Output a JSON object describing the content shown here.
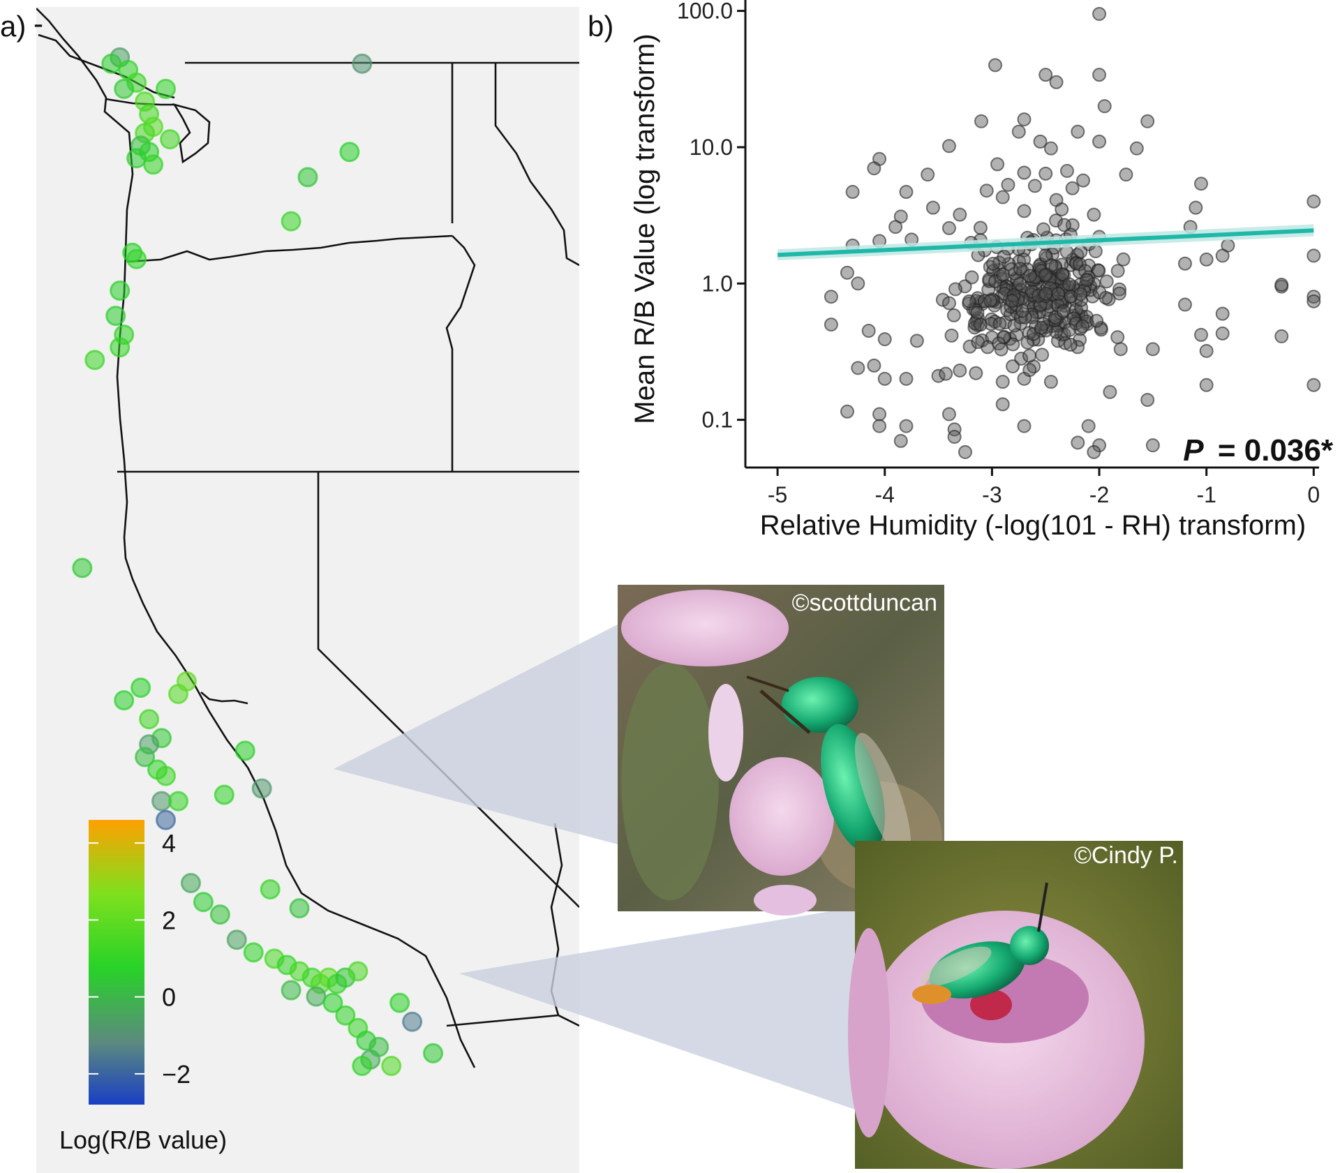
{
  "colors": {
    "map_land": "#f1f1f1",
    "map_border": "#111111",
    "fit_line": "#1fb8a8",
    "fit_band": "#bfe8e4",
    "scatter_point": "#555555",
    "callout": "#c9cfdf",
    "scale_low": "#1a3fc4",
    "scale_mid_low": "#5c8a7e",
    "scale_mid": "#28d228",
    "scale_mid_high": "#7ee01e",
    "scale_high": "#ffa000"
  },
  "panel_a": {
    "label": "a)",
    "legend": {
      "title": "Log(R/B value)",
      "ticks": [
        "4",
        "2",
        "0",
        "−2"
      ],
      "range": [
        -2.8,
        4.6
      ]
    }
  },
  "panel_b": {
    "label": "b)",
    "p_value": "= 0.036*",
    "p_symbol": "P"
  },
  "photos": {
    "top_credit": "©scottduncan",
    "bottom_credit": "©Cindy P."
  },
  "chart_data": [
    {
      "type": "scatter",
      "title": "",
      "xlabel": "Relative Humidity (-log(101 - RH) transform)",
      "ylabel": "Mean R/B Value (log transform)",
      "xlim": [
        -5.3,
        0.05
      ],
      "ylim_log10": [
        -1.35,
        2.08
      ],
      "x_ticks": [
        -5,
        -4,
        -3,
        -2,
        -1,
        0
      ],
      "x_tick_labels": [
        "-5",
        "-4",
        "-3",
        "-2",
        "-1",
        "0"
      ],
      "y_ticks": [
        0.1,
        1.0,
        10.0,
        100.0
      ],
      "y_tick_labels": [
        "0.1",
        "1.0",
        "10.0",
        "100.0"
      ],
      "fit": {
        "x": [
          -5.0,
          0.0
        ],
        "y": [
          1.62,
          2.45
        ],
        "band_low": [
          1.48,
          2.22
        ],
        "band_high": [
          1.78,
          2.72
        ]
      },
      "points": [
        [
          -2.0,
          95
        ],
        [
          -2.97,
          40
        ],
        [
          -2.5,
          34
        ],
        [
          -2.4,
          30
        ],
        [
          -2.0,
          34
        ],
        [
          -1.95,
          20
        ],
        [
          -2.7,
          16
        ],
        [
          -3.1,
          15.5
        ],
        [
          -1.55,
          15.5
        ],
        [
          -2.75,
          13
        ],
        [
          -2.2,
          13
        ],
        [
          -2.55,
          11
        ],
        [
          -2.0,
          11
        ],
        [
          -3.4,
          10.2
        ],
        [
          -1.65,
          9.8
        ],
        [
          -2.45,
          9.8
        ],
        [
          -4.05,
          8.2
        ],
        [
          -4.1,
          7.0
        ],
        [
          -2.95,
          7.5
        ],
        [
          -2.3,
          6.7
        ],
        [
          -3.6,
          6.3
        ],
        [
          -1.75,
          6.3
        ],
        [
          -2.5,
          6.4
        ],
        [
          -2.7,
          6.5
        ],
        [
          -1.05,
          5.4
        ],
        [
          -2.85,
          5.3
        ],
        [
          -3.8,
          4.7
        ],
        [
          -3.05,
          4.8
        ],
        [
          -2.9,
          4.3
        ],
        [
          -2.4,
          4.1
        ],
        [
          -2.25,
          5.0
        ],
        [
          -2.15,
          5.7
        ],
        [
          -2.6,
          5.2
        ],
        [
          -4.3,
          4.7
        ],
        [
          0.0,
          4.0
        ],
        [
          -3.55,
          3.6
        ],
        [
          -1.1,
          3.6
        ],
        [
          -3.3,
          3.2
        ],
        [
          -2.05,
          3.2
        ],
        [
          -3.85,
          3.1
        ],
        [
          -2.7,
          3.4
        ],
        [
          -2.35,
          3.5
        ],
        [
          -3.9,
          2.6
        ],
        [
          -3.4,
          2.55
        ],
        [
          -1.15,
          2.6
        ],
        [
          -4.05,
          2.05
        ],
        [
          -3.75,
          2.1
        ],
        [
          -2.0,
          2.2
        ],
        [
          -0.8,
          1.9
        ],
        [
          -4.3,
          1.9
        ],
        [
          -4.35,
          1.2
        ],
        [
          -1.2,
          1.4
        ],
        [
          -1.0,
          1.5
        ],
        [
          -0.85,
          1.6
        ],
        [
          -4.25,
          1.0
        ],
        [
          -4.5,
          0.8
        ],
        [
          -0.3,
          0.95
        ],
        [
          0.0,
          1.6
        ],
        [
          -0.3,
          0.98
        ],
        [
          0.0,
          0.8
        ],
        [
          0.0,
          0.74
        ],
        [
          -1.2,
          0.7
        ],
        [
          -4.5,
          0.5
        ],
        [
          -4.15,
          0.45
        ],
        [
          -0.85,
          0.6
        ],
        [
          -0.85,
          0.43
        ],
        [
          -1.05,
          0.42
        ],
        [
          -0.3,
          0.41
        ],
        [
          -1.0,
          0.32
        ],
        [
          -4.0,
          0.39
        ],
        [
          -3.7,
          0.38
        ],
        [
          -1.5,
          0.33
        ],
        [
          -1.8,
          0.33
        ],
        [
          -4.1,
          0.25
        ],
        [
          -4.25,
          0.24
        ],
        [
          -4.0,
          0.2
        ],
        [
          -3.8,
          0.2
        ],
        [
          -3.5,
          0.21
        ],
        [
          -3.3,
          0.23
        ],
        [
          -3.15,
          0.22
        ],
        [
          -2.9,
          0.19
        ],
        [
          -2.7,
          0.2
        ],
        [
          -2.45,
          0.19
        ],
        [
          -1.0,
          0.18
        ],
        [
          0.0,
          0.18
        ],
        [
          -1.9,
          0.16
        ],
        [
          -1.55,
          0.14
        ],
        [
          -4.35,
          0.115
        ],
        [
          -4.05,
          0.11
        ],
        [
          -3.4,
          0.11
        ],
        [
          -2.9,
          0.13
        ],
        [
          -3.35,
          0.085
        ],
        [
          -3.8,
          0.09
        ],
        [
          -4.05,
          0.09
        ],
        [
          -2.7,
          0.09
        ],
        [
          -2.1,
          0.09
        ],
        [
          -3.35,
          0.075
        ],
        [
          -3.85,
          0.07
        ],
        [
          -2.0,
          0.065
        ],
        [
          -2.2,
          0.068
        ],
        [
          -1.5,
          0.065
        ],
        [
          -3.25,
          0.058
        ],
        [
          -2.05,
          0.058
        ]
      ],
      "dense_cloud": {
        "x_range": [
          -3.6,
          -1.6
        ],
        "y_log10_range": [
          -0.75,
          0.55
        ],
        "count": 300
      }
    },
    {
      "type": "map-scatter",
      "title": "",
      "value_label": "Log(R/B value)",
      "lon_range": [
        -125,
        -112
      ],
      "lat_range": [
        31,
        49.5
      ],
      "points": [
        [
          -123.0,
          48.7,
          -0.6
        ],
        [
          -123.2,
          48.6,
          0.6
        ],
        [
          -122.8,
          48.5,
          0.9
        ],
        [
          -122.6,
          48.3,
          1.2
        ],
        [
          -122.9,
          48.2,
          0.5
        ],
        [
          -122.4,
          48.0,
          1.6
        ],
        [
          -122.3,
          47.8,
          1.4
        ],
        [
          -122.2,
          47.6,
          1.8
        ],
        [
          -122.4,
          47.5,
          1.5
        ],
        [
          -122.5,
          47.3,
          0.2
        ],
        [
          -122.3,
          47.2,
          0.8
        ],
        [
          -122.6,
          47.1,
          0.6
        ],
        [
          -122.2,
          47.0,
          1.0
        ],
        [
          -121.9,
          48.2,
          0.9
        ],
        [
          -121.8,
          47.4,
          1.3
        ],
        [
          -117.2,
          48.6,
          -0.9
        ],
        [
          -117.5,
          47.2,
          0.7
        ],
        [
          -118.5,
          46.8,
          0.4
        ],
        [
          -118.9,
          46.1,
          1.1
        ],
        [
          -122.7,
          45.6,
          0.8
        ],
        [
          -122.6,
          45.5,
          0.9
        ],
        [
          -123.0,
          45.0,
          0.7
        ],
        [
          -123.1,
          44.6,
          0.6
        ],
        [
          -122.9,
          44.3,
          0.9
        ],
        [
          -123.0,
          44.1,
          1.0
        ],
        [
          -123.6,
          43.9,
          1.2
        ],
        [
          -123.9,
          40.6,
          0.5
        ],
        [
          -122.5,
          38.7,
          0.8
        ],
        [
          -122.9,
          38.5,
          0.7
        ],
        [
          -122.3,
          38.2,
          1.3
        ],
        [
          -121.6,
          38.6,
          1.7
        ],
        [
          -121.4,
          38.8,
          2.0
        ],
        [
          -122.0,
          37.9,
          0.5
        ],
        [
          -122.3,
          37.8,
          -0.6
        ],
        [
          -122.4,
          37.6,
          0.2
        ],
        [
          -122.1,
          37.4,
          0.9
        ],
        [
          -121.9,
          37.3,
          1.2
        ],
        [
          -122.0,
          36.9,
          -0.8
        ],
        [
          -121.9,
          36.6,
          -1.9
        ],
        [
          -121.6,
          36.9,
          1.0
        ],
        [
          -120.0,
          37.7,
          0.7
        ],
        [
          -119.6,
          37.1,
          -0.8
        ],
        [
          -120.5,
          37.0,
          0.9
        ],
        [
          -121.3,
          35.6,
          -0.4
        ],
        [
          -121.0,
          35.3,
          0.6
        ],
        [
          -120.6,
          35.1,
          0.3
        ],
        [
          -119.4,
          35.5,
          1.0
        ],
        [
          -118.7,
          35.2,
          0.3
        ],
        [
          -120.2,
          34.7,
          -0.5
        ],
        [
          -119.8,
          34.5,
          0.9
        ],
        [
          -119.3,
          34.4,
          1.5
        ],
        [
          -119.0,
          34.3,
          1.0
        ],
        [
          -118.7,
          34.2,
          1.4
        ],
        [
          -118.4,
          34.1,
          1.2
        ],
        [
          -118.2,
          34.0,
          1.6
        ],
        [
          -118.0,
          34.1,
          1.8
        ],
        [
          -117.8,
          34.0,
          1.0
        ],
        [
          -117.6,
          34.1,
          0.4
        ],
        [
          -117.3,
          34.2,
          1.5
        ],
        [
          -118.3,
          33.8,
          -0.3
        ],
        [
          -118.9,
          33.9,
          0.1
        ],
        [
          -117.9,
          33.7,
          0.8
        ],
        [
          -117.6,
          33.5,
          0.9
        ],
        [
          -117.3,
          33.3,
          1.1
        ],
        [
          -117.1,
          33.1,
          0.6
        ],
        [
          -117.0,
          32.8,
          -0.3
        ],
        [
          -117.2,
          32.7,
          0.9
        ],
        [
          -116.8,
          33.0,
          0.2
        ],
        [
          -116.5,
          32.7,
          1.6
        ],
        [
          -116.3,
          33.7,
          0.8
        ],
        [
          -115.5,
          32.9,
          0.5
        ],
        [
          -116.0,
          33.4,
          -1.5
        ]
      ]
    }
  ]
}
